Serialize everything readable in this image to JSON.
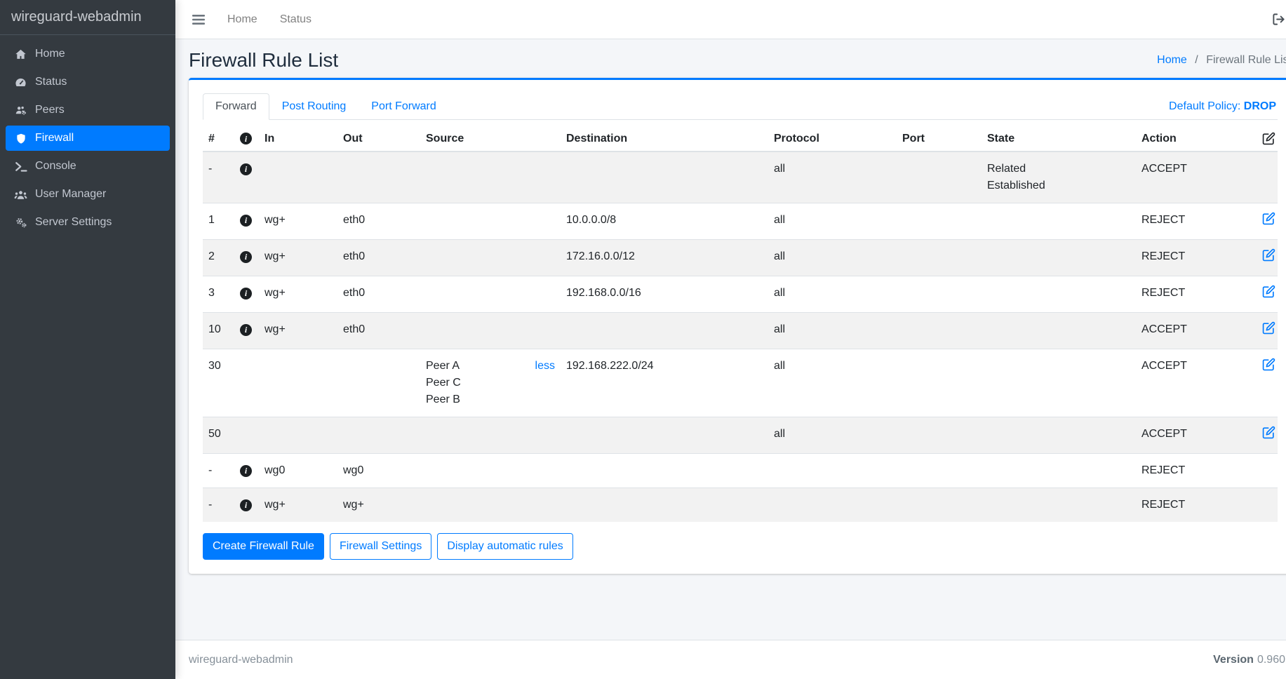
{
  "app": {
    "brand": "wireguard-webadmin"
  },
  "navbar": {
    "menu_icon": "hamburger-icon",
    "links": [
      "Home",
      "Status"
    ],
    "logout_icon": "sign-out-icon"
  },
  "sidebar": {
    "items": [
      {
        "label": "Home",
        "icon": "home-icon",
        "active": false
      },
      {
        "label": "Status",
        "icon": "gauge-icon",
        "active": false
      },
      {
        "label": "Peers",
        "icon": "users-gear-icon",
        "active": false
      },
      {
        "label": "Firewall",
        "icon": "shield-icon",
        "active": true
      },
      {
        "label": "Console",
        "icon": "terminal-icon",
        "active": false
      },
      {
        "label": "User Manager",
        "icon": "users-icon",
        "active": false
      },
      {
        "label": "Server Settings",
        "icon": "gears-icon",
        "active": false
      }
    ]
  },
  "page": {
    "title": "Firewall Rule List",
    "breadcrumb": {
      "home": "Home",
      "separator": "/",
      "current": "Firewall Rule List"
    }
  },
  "firewall": {
    "tabs": [
      {
        "label": "Forward",
        "active": true
      },
      {
        "label": "Post Routing",
        "active": false
      },
      {
        "label": "Port Forward",
        "active": false
      }
    ],
    "default_policy_label": "Default Policy:",
    "default_policy": "DROP",
    "table": {
      "headers": [
        {
          "label": "#"
        },
        {
          "icon": "info-circle-icon"
        },
        {
          "label": "In"
        },
        {
          "label": "Out"
        },
        {
          "label": "Source"
        },
        {
          "label": "Destination"
        },
        {
          "label": "Protocol"
        },
        {
          "label": "Port"
        },
        {
          "label": "State"
        },
        {
          "label": "Action"
        },
        {
          "icon": "edit-icon"
        }
      ],
      "rows": [
        {
          "num": "-",
          "info": true,
          "in": "",
          "out": "",
          "source_peers": [],
          "source_link": "",
          "destination": "",
          "protocol": "all",
          "port": "",
          "state_lines": [
            "Related",
            "Established"
          ],
          "action": "ACCEPT",
          "editable": false
        },
        {
          "num": "1",
          "info": true,
          "in": "wg+",
          "out": "eth0",
          "source_peers": [],
          "source_link": "",
          "destination": "10.0.0.0/8",
          "protocol": "all",
          "port": "",
          "state_lines": [],
          "action": "REJECT",
          "editable": true
        },
        {
          "num": "2",
          "info": true,
          "in": "wg+",
          "out": "eth0",
          "source_peers": [],
          "source_link": "",
          "destination": "172.16.0.0/12",
          "protocol": "all",
          "port": "",
          "state_lines": [],
          "action": "REJECT",
          "editable": true
        },
        {
          "num": "3",
          "info": true,
          "in": "wg+",
          "out": "eth0",
          "source_peers": [],
          "source_link": "",
          "destination": "192.168.0.0/16",
          "protocol": "all",
          "port": "",
          "state_lines": [],
          "action": "REJECT",
          "editable": true
        },
        {
          "num": "10",
          "info": true,
          "in": "wg+",
          "out": "eth0",
          "source_peers": [],
          "source_link": "",
          "destination": "",
          "protocol": "all",
          "port": "",
          "state_lines": [],
          "action": "ACCEPT",
          "editable": true
        },
        {
          "num": "30",
          "info": false,
          "in": "",
          "out": "",
          "source_peers": [
            "Peer A",
            "Peer C",
            "Peer B"
          ],
          "source_link": "less",
          "destination": "192.168.222.0/24",
          "protocol": "all",
          "port": "",
          "state_lines": [],
          "action": "ACCEPT",
          "editable": true
        },
        {
          "num": "50",
          "info": false,
          "in": "",
          "out": "",
          "source_peers": [],
          "source_link": "",
          "destination": "",
          "protocol": "all",
          "port": "",
          "state_lines": [],
          "action": "ACCEPT",
          "editable": true
        },
        {
          "num": "-",
          "info": true,
          "in": "wg0",
          "out": "wg0",
          "source_peers": [],
          "source_link": "",
          "destination": "",
          "protocol": "",
          "port": "",
          "state_lines": [],
          "action": "REJECT",
          "editable": false
        },
        {
          "num": "-",
          "info": true,
          "in": "wg+",
          "out": "wg+",
          "source_peers": [],
          "source_link": "",
          "destination": "",
          "protocol": "",
          "port": "",
          "state_lines": [],
          "action": "REJECT",
          "editable": false
        }
      ]
    },
    "buttons": [
      {
        "label": "Create Firewall Rule",
        "style": "solid"
      },
      {
        "label": "Firewall Settings",
        "style": "outline"
      },
      {
        "label": "Display automatic rules",
        "style": "outline"
      }
    ]
  },
  "footer": {
    "brand": "wireguard-webadmin",
    "version_label": "Version",
    "version": "0.960"
  },
  "colors": {
    "accent": "#007bff",
    "sidebar_bg": "#343a40",
    "sidebar_text": "#c2c7d0",
    "content_bg": "#f4f6f9",
    "stripe": "rgba(0,0,0,0.05)",
    "border": "#dee2e6",
    "policy_drop": "#007bff"
  }
}
